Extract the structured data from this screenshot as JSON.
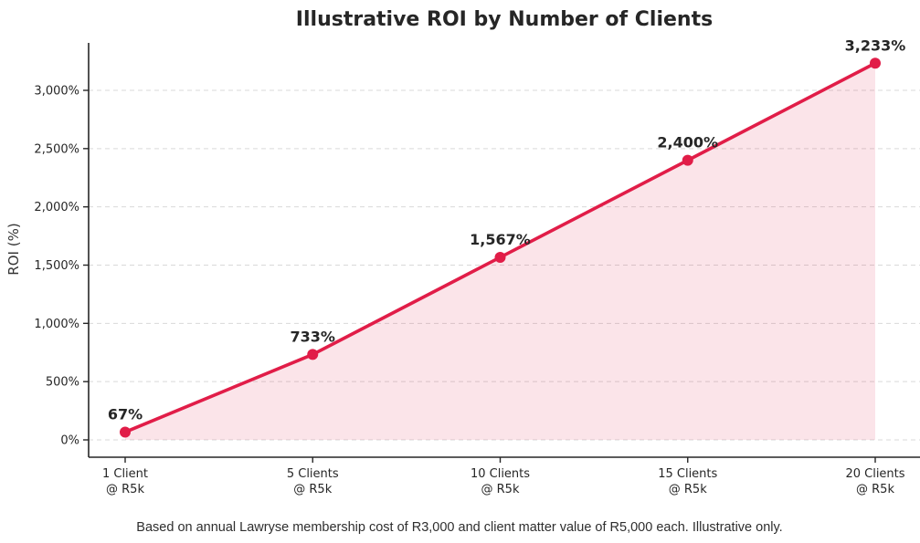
{
  "chart_data": {
    "type": "area",
    "title": "Illustrative ROI by Number of Clients",
    "ylabel": "ROI (%)",
    "xlabel": "",
    "footnote": "Based on annual Lawryse membership cost of R3,000 and client matter value of R5,000 each. Illustrative only.",
    "categories": [
      [
        "1 Client",
        "@ R5k"
      ],
      [
        "5 Clients",
        "@ R5k"
      ],
      [
        "10 Clients",
        "@ R5k"
      ],
      [
        "15 Clients",
        "@ R5k"
      ],
      [
        "20 Clients",
        "@ R5k"
      ]
    ],
    "values": [
      67,
      733,
      1567,
      2400,
      3233
    ],
    "point_labels": [
      "67%",
      "733%",
      "1,567%",
      "2,400%",
      "3,233%"
    ],
    "yticks": [
      {
        "value": 0,
        "label": "0%"
      },
      {
        "value": 500,
        "label": "500%"
      },
      {
        "value": 1000,
        "label": "1,000%"
      },
      {
        "value": 1500,
        "label": "1,500%"
      },
      {
        "value": 2000,
        "label": "2,000%"
      },
      {
        "value": 2500,
        "label": "2,500%"
      },
      {
        "value": 3000,
        "label": "3,000%"
      }
    ],
    "ylim": [
      0,
      3400
    ],
    "grid": "horizontal-dashed",
    "legend_position": "none",
    "colors": {
      "line": "#e11d48",
      "marker": "#e11d48",
      "area_fill": "rgba(225,29,72,0.12)",
      "grid": "#d9d9d9",
      "axis": "#262626",
      "text": "#262626"
    }
  }
}
